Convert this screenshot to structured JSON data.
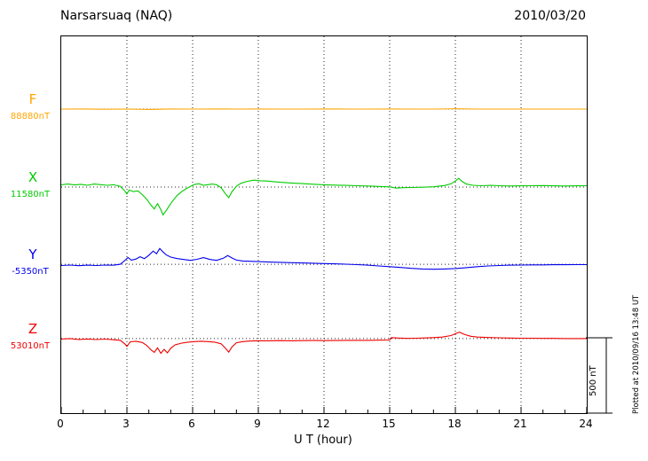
{
  "header": {
    "station": "Narsarsuaq (NAQ)",
    "date": "2010/03/20"
  },
  "xaxis": {
    "label": "U T (hour)",
    "ticks": [
      0,
      3,
      6,
      9,
      12,
      15,
      18,
      21,
      24
    ],
    "min": 0,
    "max": 24
  },
  "scalebar": {
    "label": "500 nT",
    "nT": 500
  },
  "side_note": "Plotted at 2010/09/16 13:48 UT",
  "chart_data": {
    "type": "line",
    "title": "Narsarsuaq (NAQ) magnetogram 2010/03/20",
    "xlabel": "U T (hour)",
    "xlim": [
      0,
      24
    ],
    "grid": "dotted vertical lines every 3 hours, dotted horizontal baseline per component",
    "legend_position": "left baseline labels",
    "scale_bar_nT": 500,
    "series": [
      {
        "name": "F",
        "baseline_label": "88880nT",
        "baseline_nT": 88880,
        "color": "#ffa500",
        "points": [
          [
            0,
            0
          ],
          [
            1,
            1
          ],
          [
            2,
            -1
          ],
          [
            3,
            0
          ],
          [
            4,
            -2
          ],
          [
            5,
            1
          ],
          [
            6,
            0
          ],
          [
            7,
            1
          ],
          [
            8,
            0
          ],
          [
            9,
            1
          ],
          [
            10,
            0
          ],
          [
            11,
            0
          ],
          [
            12,
            1
          ],
          [
            13,
            0
          ],
          [
            14,
            0
          ],
          [
            15,
            1
          ],
          [
            16,
            0
          ],
          [
            17,
            0
          ],
          [
            18,
            2
          ],
          [
            19,
            0
          ],
          [
            20,
            0
          ],
          [
            21,
            0
          ],
          [
            22,
            0
          ],
          [
            23,
            0
          ],
          [
            24,
            0
          ]
        ]
      },
      {
        "name": "X",
        "baseline_label": "11580nT",
        "baseline_nT": 11580,
        "color": "#00cc00",
        "points": [
          [
            0,
            15
          ],
          [
            0.3,
            20
          ],
          [
            0.6,
            14
          ],
          [
            0.9,
            18
          ],
          [
            1.2,
            12
          ],
          [
            1.5,
            20
          ],
          [
            1.8,
            16
          ],
          [
            2.1,
            12
          ],
          [
            2.4,
            15
          ],
          [
            2.7,
            5
          ],
          [
            2.9,
            -25
          ],
          [
            3.0,
            -45
          ],
          [
            3.1,
            -20
          ],
          [
            3.3,
            -30
          ],
          [
            3.5,
            -25
          ],
          [
            3.7,
            -50
          ],
          [
            3.9,
            -80
          ],
          [
            4.1,
            -120
          ],
          [
            4.25,
            -145
          ],
          [
            4.4,
            -110
          ],
          [
            4.55,
            -150
          ],
          [
            4.65,
            -185
          ],
          [
            4.8,
            -155
          ],
          [
            4.95,
            -120
          ],
          [
            5.1,
            -90
          ],
          [
            5.3,
            -55
          ],
          [
            5.5,
            -30
          ],
          [
            5.7,
            -12
          ],
          [
            5.9,
            5
          ],
          [
            6.1,
            18
          ],
          [
            6.3,
            22
          ],
          [
            6.5,
            12
          ],
          [
            6.7,
            16
          ],
          [
            6.9,
            20
          ],
          [
            7.1,
            15
          ],
          [
            7.3,
            -5
          ],
          [
            7.5,
            -45
          ],
          [
            7.65,
            -70
          ],
          [
            7.8,
            -30
          ],
          [
            8.0,
            5
          ],
          [
            8.2,
            25
          ],
          [
            8.5,
            38
          ],
          [
            8.8,
            46
          ],
          [
            9.1,
            42
          ],
          [
            9.4,
            40
          ],
          [
            9.7,
            36
          ],
          [
            10,
            32
          ],
          [
            10.5,
            27
          ],
          [
            11,
            23
          ],
          [
            11.5,
            19
          ],
          [
            12,
            15
          ],
          [
            12.5,
            13
          ],
          [
            13,
            11
          ],
          [
            13.5,
            9
          ],
          [
            14,
            7
          ],
          [
            14.5,
            4
          ],
          [
            15,
            1
          ],
          [
            15.3,
            -7
          ],
          [
            15.6,
            -4
          ],
          [
            16,
            -3
          ],
          [
            16.5,
            -1
          ],
          [
            17,
            2
          ],
          [
            17.5,
            10
          ],
          [
            17.8,
            22
          ],
          [
            18.0,
            40
          ],
          [
            18.15,
            58
          ],
          [
            18.3,
            38
          ],
          [
            18.5,
            20
          ],
          [
            18.8,
            12
          ],
          [
            19.2,
            9
          ],
          [
            19.6,
            11
          ],
          [
            20,
            9
          ],
          [
            20.5,
            7
          ],
          [
            21,
            8
          ],
          [
            21.5,
            9
          ],
          [
            22,
            10
          ],
          [
            22.5,
            8
          ],
          [
            23,
            7
          ],
          [
            23.5,
            8
          ],
          [
            24,
            9
          ]
        ]
      },
      {
        "name": "Y",
        "baseline_label": "-5350nT",
        "baseline_nT": -5350,
        "color": "#0000ee",
        "points": [
          [
            0,
            -8
          ],
          [
            0.4,
            -5
          ],
          [
            0.8,
            -9
          ],
          [
            1.2,
            -6
          ],
          [
            1.6,
            -8
          ],
          [
            2,
            -5
          ],
          [
            2.4,
            -6
          ],
          [
            2.7,
            0
          ],
          [
            2.9,
            25
          ],
          [
            3.05,
            45
          ],
          [
            3.2,
            28
          ],
          [
            3.4,
            34
          ],
          [
            3.6,
            50
          ],
          [
            3.8,
            38
          ],
          [
            4.0,
            60
          ],
          [
            4.2,
            88
          ],
          [
            4.35,
            70
          ],
          [
            4.5,
            105
          ],
          [
            4.65,
            82
          ],
          [
            4.8,
            62
          ],
          [
            5.0,
            48
          ],
          [
            5.3,
            38
          ],
          [
            5.6,
            32
          ],
          [
            5.9,
            26
          ],
          [
            6.2,
            33
          ],
          [
            6.5,
            44
          ],
          [
            6.8,
            32
          ],
          [
            7.1,
            26
          ],
          [
            7.4,
            40
          ],
          [
            7.6,
            58
          ],
          [
            7.8,
            42
          ],
          [
            8.0,
            28
          ],
          [
            8.3,
            22
          ],
          [
            8.6,
            20
          ],
          [
            9,
            18
          ],
          [
            9.5,
            15
          ],
          [
            10,
            13
          ],
          [
            10.5,
            11
          ],
          [
            11,
            9
          ],
          [
            11.5,
            7
          ],
          [
            12,
            5
          ],
          [
            12.5,
            3
          ],
          [
            13,
            1
          ],
          [
            13.5,
            -2
          ],
          [
            14,
            -6
          ],
          [
            14.5,
            -11
          ],
          [
            15,
            -16
          ],
          [
            15.5,
            -21
          ],
          [
            16,
            -27
          ],
          [
            16.5,
            -31
          ],
          [
            17,
            -33
          ],
          [
            17.5,
            -31
          ],
          [
            18,
            -28
          ],
          [
            18.5,
            -22
          ],
          [
            19,
            -16
          ],
          [
            19.5,
            -11
          ],
          [
            20,
            -8
          ],
          [
            20.5,
            -6
          ],
          [
            21,
            -5
          ],
          [
            21.5,
            -4
          ],
          [
            22,
            -4
          ],
          [
            22.5,
            -3
          ],
          [
            23,
            -3
          ],
          [
            23.5,
            -2
          ],
          [
            24,
            -2
          ]
        ]
      },
      {
        "name": "Z",
        "baseline_label": "53010nT",
        "baseline_nT": 53010,
        "color": "#ee0000",
        "points": [
          [
            0,
            -4
          ],
          [
            0.4,
            0
          ],
          [
            0.8,
            -6
          ],
          [
            1.2,
            -3
          ],
          [
            1.6,
            -7
          ],
          [
            2,
            -4
          ],
          [
            2.4,
            -8
          ],
          [
            2.7,
            -12
          ],
          [
            2.9,
            -35
          ],
          [
            3.0,
            -52
          ],
          [
            3.15,
            -22
          ],
          [
            3.4,
            -18
          ],
          [
            3.7,
            -26
          ],
          [
            3.9,
            -45
          ],
          [
            4.1,
            -75
          ],
          [
            4.25,
            -92
          ],
          [
            4.4,
            -62
          ],
          [
            4.55,
            -98
          ],
          [
            4.7,
            -72
          ],
          [
            4.85,
            -95
          ],
          [
            5.0,
            -65
          ],
          [
            5.2,
            -42
          ],
          [
            5.5,
            -30
          ],
          [
            5.8,
            -24
          ],
          [
            6.1,
            -20
          ],
          [
            6.4,
            -18
          ],
          [
            6.7,
            -20
          ],
          [
            7.0,
            -24
          ],
          [
            7.3,
            -35
          ],
          [
            7.5,
            -65
          ],
          [
            7.65,
            -90
          ],
          [
            7.8,
            -55
          ],
          [
            8.0,
            -28
          ],
          [
            8.3,
            -20
          ],
          [
            8.6,
            -17
          ],
          [
            9,
            -15
          ],
          [
            9.5,
            -15
          ],
          [
            10,
            -14
          ],
          [
            10.5,
            -15
          ],
          [
            11,
            -14
          ],
          [
            11.5,
            -13
          ],
          [
            12,
            -14
          ],
          [
            12.5,
            -13
          ],
          [
            13,
            -12
          ],
          [
            13.5,
            -12
          ],
          [
            14,
            -12
          ],
          [
            14.5,
            -11
          ],
          [
            15,
            -10
          ],
          [
            15.08,
            6
          ],
          [
            15.4,
            3
          ],
          [
            15.8,
            1
          ],
          [
            16.2,
            2
          ],
          [
            16.6,
            4
          ],
          [
            17,
            6
          ],
          [
            17.4,
            10
          ],
          [
            17.8,
            20
          ],
          [
            18.05,
            35
          ],
          [
            18.2,
            42
          ],
          [
            18.4,
            28
          ],
          [
            18.7,
            15
          ],
          [
            19,
            10
          ],
          [
            19.5,
            7
          ],
          [
            20,
            5
          ],
          [
            20.5,
            3
          ],
          [
            21,
            2
          ],
          [
            21.5,
            2
          ],
          [
            22,
            1
          ],
          [
            22.5,
            1
          ],
          [
            23,
            0
          ],
          [
            23.5,
            0
          ],
          [
            24,
            0
          ]
        ]
      }
    ]
  }
}
